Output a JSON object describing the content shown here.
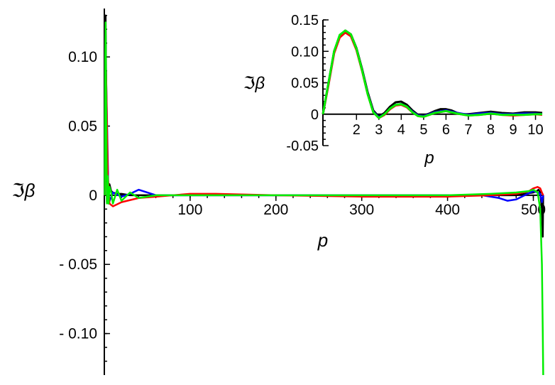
{
  "chart_data": [
    {
      "type": "line",
      "xlabel": "p",
      "ylabel": "ℑβ",
      "xlim": [
        0,
        512
      ],
      "ylim": [
        -0.13,
        0.135
      ],
      "x_ticks": [
        100,
        200,
        300,
        400,
        500
      ],
      "x_tick_labels": [
        "100",
        "200",
        "300",
        "400",
        "500"
      ],
      "y_ticks": [
        0.1,
        0.05,
        0,
        -0.05,
        -0.1
      ],
      "y_tick_labels": [
        "0.10",
        "0.05",
        "0",
        "- 0.05",
        "- 0.10"
      ],
      "grid": false,
      "series": [
        {
          "color": "#000000",
          "x": [
            0.5,
            1,
            1.5,
            2,
            3,
            4,
            5,
            6,
            8,
            10,
            15,
            20,
            30,
            50,
            100,
            200,
            300,
            400,
            450,
            480,
            500,
            504,
            506,
            508,
            510,
            511,
            511.5
          ],
          "y": [
            0.0,
            0.12,
            0.13,
            0.09,
            -0.005,
            0.018,
            -0.006,
            0.008,
            0.003,
            0.002,
            0.001,
            0.001,
            0.0,
            0.0,
            0.0,
            0.0,
            0.0,
            0.0,
            0.0,
            0.0,
            0.002,
            0.003,
            0.004,
            0.002,
            -0.01,
            -0.03,
            0.0
          ]
        },
        {
          "color": "#0000ff",
          "x": [
            0.5,
            2,
            5,
            10,
            20,
            30,
            40,
            50,
            60,
            80,
            100,
            200,
            300,
            400,
            440,
            460,
            470,
            480,
            490,
            500,
            505,
            508,
            510,
            511.5
          ],
          "y": [
            0.0,
            0.09,
            -0.006,
            0.002,
            -0.001,
            0.001,
            0.004,
            0.002,
            0.0,
            0.0,
            0.0,
            0.0,
            0.0,
            0.0,
            0.0,
            -0.002,
            -0.004,
            -0.003,
            0.0,
            0.003,
            0.002,
            0.001,
            -0.005,
            0.0
          ]
        },
        {
          "color": "#ff0000",
          "x": [
            0.5,
            2,
            4,
            6,
            10,
            20,
            40,
            60,
            80,
            100,
            130,
            200,
            300,
            400,
            450,
            480,
            495,
            500,
            505,
            508,
            510,
            511.5
          ],
          "y": [
            0.0,
            0.09,
            0.015,
            -0.006,
            -0.008,
            -0.005,
            -0.002,
            -0.001,
            0.0,
            0.001,
            0.001,
            0.0,
            -0.001,
            -0.001,
            0.0,
            0.001,
            0.003,
            0.005,
            0.006,
            0.005,
            0.002,
            0.0
          ]
        },
        {
          "color": "#00ee00",
          "x": [
            0.5,
            1,
            1.5,
            2,
            3,
            4,
            5,
            6,
            8,
            10,
            15,
            20,
            30,
            40,
            60,
            80,
            100,
            200,
            300,
            400,
            450,
            480,
            495,
            500,
            505,
            508,
            510,
            511,
            511.5
          ],
          "y": [
            0.0,
            0.1,
            0.125,
            0.08,
            -0.006,
            0.014,
            -0.006,
            0.006,
            0.002,
            -0.006,
            0.004,
            -0.004,
            0.002,
            -0.002,
            0.0,
            0.0,
            0.0,
            0.0,
            0.0,
            0.0,
            0.001,
            0.002,
            0.003,
            0.004,
            0.002,
            -0.01,
            -0.05,
            -0.1,
            -0.13
          ]
        }
      ]
    },
    {
      "type": "line",
      "xlabel": "p",
      "ylabel": "ℑβ",
      "xlim": [
        0.5,
        10.3
      ],
      "ylim": [
        -0.05,
        0.15
      ],
      "x_ticks": [
        2,
        3,
        4,
        5,
        6,
        7,
        8,
        9,
        10
      ],
      "x_tick_labels": [
        "2",
        "3",
        "4",
        "5",
        "6",
        "7",
        "8",
        "9",
        "10"
      ],
      "y_ticks": [
        0.15,
        0.1,
        0.05,
        0,
        -0.05
      ],
      "y_tick_labels": [
        "0.15",
        "0.10",
        "0.05",
        "0",
        "-0.05"
      ],
      "grid": false,
      "series": [
        {
          "color": "#000000",
          "x": [
            0.5,
            0.75,
            1.0,
            1.25,
            1.5,
            1.75,
            2.0,
            2.25,
            2.5,
            2.75,
            3.0,
            3.25,
            3.5,
            3.75,
            4.0,
            4.25,
            4.5,
            4.75,
            5.0,
            5.25,
            5.5,
            5.75,
            6.0,
            6.25,
            6.5,
            6.75,
            7.0,
            7.5,
            8.0,
            8.5,
            9.0,
            9.5,
            10.0,
            10.3
          ],
          "y": [
            0.0,
            0.05,
            0.1,
            0.125,
            0.133,
            0.127,
            0.105,
            0.072,
            0.035,
            0.006,
            -0.004,
            0.002,
            0.012,
            0.019,
            0.02,
            0.015,
            0.006,
            -0.001,
            -0.002,
            0.001,
            0.005,
            0.008,
            0.008,
            0.006,
            0.002,
            0.0,
            0.0,
            0.002,
            0.004,
            0.002,
            0.001,
            0.003,
            0.003,
            0.002
          ]
        },
        {
          "color": "#0000ff",
          "x": [
            0.5,
            0.75,
            1.0,
            1.25,
            1.5,
            1.75,
            2.0,
            2.25,
            2.5,
            2.75,
            3.0,
            3.25,
            3.5,
            3.75,
            4.0,
            4.25,
            4.5,
            4.75,
            5.0,
            5.5,
            6.0,
            6.5,
            7.0,
            7.5,
            8.0,
            8.5,
            9.0,
            9.5,
            10.0,
            10.3
          ],
          "y": [
            0.0,
            0.048,
            0.098,
            0.123,
            0.131,
            0.125,
            0.103,
            0.07,
            0.033,
            0.004,
            -0.005,
            0.0,
            0.009,
            0.015,
            0.016,
            0.012,
            0.004,
            -0.002,
            -0.003,
            0.003,
            0.006,
            0.002,
            -0.001,
            0.001,
            0.002,
            0.0,
            0.0,
            0.001,
            0.001,
            0.0
          ]
        },
        {
          "color": "#ff0000",
          "x": [
            0.5,
            0.75,
            1.0,
            1.25,
            1.5,
            1.75,
            2.0,
            2.25,
            2.5,
            2.75,
            3.0,
            3.25,
            3.5,
            3.75,
            4.0,
            4.25,
            4.5,
            4.75,
            5.0,
            5.5,
            6.0,
            6.5,
            7.0,
            7.5,
            8.0,
            8.5,
            9.0,
            9.5,
            10.0,
            10.3
          ],
          "y": [
            0.0,
            0.047,
            0.097,
            0.122,
            0.13,
            0.124,
            0.102,
            0.069,
            0.032,
            0.003,
            -0.006,
            -0.001,
            0.008,
            0.014,
            0.015,
            0.011,
            0.003,
            -0.003,
            -0.004,
            0.002,
            0.005,
            0.001,
            -0.002,
            -0.001,
            0.001,
            -0.001,
            -0.002,
            -0.001,
            0.0,
            -0.001
          ]
        },
        {
          "color": "#00ee00",
          "x": [
            0.5,
            0.75,
            1.0,
            1.25,
            1.5,
            1.75,
            2.0,
            2.25,
            2.5,
            2.75,
            3.0,
            3.25,
            3.5,
            3.75,
            4.0,
            4.25,
            4.5,
            4.75,
            5.0,
            5.5,
            6.0,
            6.5,
            7.0,
            7.5,
            8.0,
            8.5,
            9.0,
            9.5,
            10.0,
            10.3
          ],
          "y": [
            0.0,
            0.05,
            0.1,
            0.126,
            0.133,
            0.127,
            0.104,
            0.07,
            0.032,
            0.003,
            -0.006,
            0.0,
            0.009,
            0.015,
            0.016,
            0.012,
            0.003,
            -0.003,
            -0.004,
            0.002,
            0.005,
            0.001,
            -0.002,
            -0.001,
            0.001,
            -0.001,
            -0.001,
            -0.001,
            0.0,
            0.0
          ]
        }
      ]
    }
  ]
}
